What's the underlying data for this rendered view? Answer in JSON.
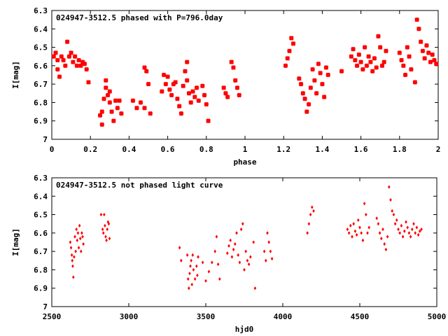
{
  "chart_data": [
    {
      "type": "scatter",
      "title": "024947-3512.5 phased with P=796.0day",
      "xlabel": "phase",
      "ylabel": "I[mag]",
      "xlim": [
        0,
        2
      ],
      "ylim": [
        7,
        6.3
      ],
      "y_inverted": true,
      "xticks": [
        "0",
        "0.2",
        "0.4",
        "0.6",
        "0.8",
        "1",
        "1.2",
        "1.4",
        "1.6",
        "1.8",
        "2"
      ],
      "yticks": [
        "6.3",
        "6.4",
        "6.5",
        "6.6",
        "6.7",
        "6.8",
        "6.9",
        "7"
      ],
      "marker_color": "#ff0000",
      "marker": "cross",
      "series": [
        {
          "points": [
            [
              0.01,
              6.55
            ],
            [
              0.02,
              6.53
            ],
            [
              0.03,
              6.57
            ],
            [
              0.03,
              6.62
            ],
            [
              0.04,
              6.66
            ],
            [
              0.05,
              6.55
            ],
            [
              0.06,
              6.57
            ],
            [
              0.07,
              6.6
            ],
            [
              0.08,
              6.47
            ],
            [
              0.09,
              6.55
            ],
            [
              0.1,
              6.53
            ],
            [
              0.11,
              6.58
            ],
            [
              0.12,
              6.55
            ],
            [
              0.13,
              6.6
            ],
            [
              0.14,
              6.57
            ],
            [
              0.15,
              6.6
            ],
            [
              0.16,
              6.58
            ],
            [
              0.17,
              6.59
            ],
            [
              0.18,
              6.62
            ],
            [
              0.19,
              6.69
            ],
            [
              0.25,
              6.87
            ],
            [
              0.26,
              6.92
            ],
            [
              0.26,
              6.85
            ],
            [
              0.27,
              6.78
            ],
            [
              0.28,
              6.72
            ],
            [
              0.28,
              6.68
            ],
            [
              0.29,
              6.76
            ],
            [
              0.3,
              6.8
            ],
            [
              0.3,
              6.74
            ],
            [
              0.31,
              6.85
            ],
            [
              0.32,
              6.9
            ],
            [
              0.33,
              6.79
            ],
            [
              0.34,
              6.83
            ],
            [
              0.35,
              6.79
            ],
            [
              0.36,
              6.86
            ],
            [
              0.42,
              6.79
            ],
            [
              0.44,
              6.83
            ],
            [
              0.46,
              6.8
            ],
            [
              0.48,
              6.83
            ],
            [
              0.48,
              6.61
            ],
            [
              0.49,
              6.63
            ],
            [
              0.5,
              6.7
            ],
            [
              0.51,
              6.86
            ],
            [
              0.57,
              6.74
            ],
            [
              0.58,
              6.65
            ],
            [
              0.59,
              6.7
            ],
            [
              0.6,
              6.66
            ],
            [
              0.61,
              6.73
            ],
            [
              0.62,
              6.76
            ],
            [
              0.63,
              6.7
            ],
            [
              0.64,
              6.69
            ],
            [
              0.65,
              6.78
            ],
            [
              0.66,
              6.82
            ],
            [
              0.67,
              6.86
            ],
            [
              0.68,
              6.71
            ],
            [
              0.69,
              6.63
            ],
            [
              0.7,
              6.58
            ],
            [
              0.7,
              6.68
            ],
            [
              0.71,
              6.75
            ],
            [
              0.72,
              6.8
            ],
            [
              0.73,
              6.74
            ],
            [
              0.74,
              6.77
            ],
            [
              0.75,
              6.72
            ],
            [
              0.76,
              6.79
            ],
            [
              0.78,
              6.71
            ],
            [
              0.79,
              6.76
            ],
            [
              0.8,
              6.81
            ],
            [
              0.81,
              6.9
            ],
            [
              0.89,
              6.72
            ],
            [
              0.9,
              6.75
            ],
            [
              0.91,
              6.77
            ],
            [
              0.93,
              6.58
            ],
            [
              0.94,
              6.61
            ],
            [
              0.95,
              6.68
            ],
            [
              0.96,
              6.72
            ],
            [
              0.97,
              6.76
            ],
            [
              1.21,
              6.6
            ],
            [
              1.22,
              6.56
            ],
            [
              1.23,
              6.52
            ],
            [
              1.24,
              6.45
            ],
            [
              1.25,
              6.48
            ],
            [
              1.28,
              6.67
            ],
            [
              1.29,
              6.7
            ],
            [
              1.3,
              6.75
            ],
            [
              1.31,
              6.78
            ],
            [
              1.32,
              6.85
            ],
            [
              1.33,
              6.81
            ],
            [
              1.34,
              6.72
            ],
            [
              1.35,
              6.62
            ],
            [
              1.36,
              6.68
            ],
            [
              1.37,
              6.75
            ],
            [
              1.38,
              6.59
            ],
            [
              1.39,
              6.64
            ],
            [
              1.4,
              6.7
            ],
            [
              1.41,
              6.77
            ],
            [
              1.42,
              6.61
            ],
            [
              1.43,
              6.65
            ],
            [
              1.5,
              6.63
            ],
            [
              1.55,
              6.55
            ],
            [
              1.56,
              6.51
            ],
            [
              1.57,
              6.57
            ],
            [
              1.58,
              6.6
            ],
            [
              1.59,
              6.54
            ],
            [
              1.6,
              6.58
            ],
            [
              1.61,
              6.62
            ],
            [
              1.62,
              6.5
            ],
            [
              1.63,
              6.6
            ],
            [
              1.64,
              6.55
            ],
            [
              1.65,
              6.58
            ],
            [
              1.66,
              6.63
            ],
            [
              1.67,
              6.56
            ],
            [
              1.68,
              6.61
            ],
            [
              1.69,
              6.44
            ],
            [
              1.7,
              6.5
            ],
            [
              1.71,
              6.6
            ],
            [
              1.72,
              6.58
            ],
            [
              1.73,
              6.52
            ],
            [
              1.8,
              6.53
            ],
            [
              1.81,
              6.57
            ],
            [
              1.82,
              6.6
            ],
            [
              1.83,
              6.65
            ],
            [
              1.84,
              6.5
            ],
            [
              1.85,
              6.55
            ],
            [
              1.86,
              6.62
            ],
            [
              1.88,
              6.69
            ],
            [
              1.89,
              6.35
            ],
            [
              1.9,
              6.4
            ],
            [
              1.91,
              6.47
            ],
            [
              1.92,
              6.52
            ],
            [
              1.93,
              6.56
            ],
            [
              1.94,
              6.49
            ],
            [
              1.95,
              6.53
            ],
            [
              1.96,
              6.58
            ],
            [
              1.97,
              6.54
            ],
            [
              1.98,
              6.57
            ],
            [
              1.99,
              6.59
            ]
          ]
        }
      ]
    },
    {
      "type": "scatter",
      "title": "024947-3512.5 not phased light curve",
      "xlabel": "hjd0",
      "ylabel": "I[mag]",
      "xlim": [
        2500,
        5000
      ],
      "ylim": [
        7,
        6.3
      ],
      "y_inverted": true,
      "xticks": [
        "2500",
        "3000",
        "3500",
        "4000",
        "4500",
        "5000"
      ],
      "yticks": [
        "6.3",
        "6.4",
        "6.5",
        "6.6",
        "6.7",
        "6.8",
        "6.9",
        "7"
      ],
      "marker_color": "#ff0000",
      "marker": "diamond",
      "series": [
        {
          "points": [
            [
              2620,
              6.65
            ],
            [
              2625,
              6.68
            ],
            [
              2630,
              6.72
            ],
            [
              2633,
              6.75
            ],
            [
              2636,
              6.78
            ],
            [
              2640,
              6.84
            ],
            [
              2645,
              6.73
            ],
            [
              2650,
              6.62
            ],
            [
              2655,
              6.7
            ],
            [
              2660,
              6.58
            ],
            [
              2665,
              6.64
            ],
            [
              2670,
              6.6
            ],
            [
              2675,
              6.68
            ],
            [
              2680,
              6.56
            ],
            [
              2685,
              6.63
            ],
            [
              2690,
              6.7
            ],
            [
              2695,
              6.6
            ],
            [
              2700,
              6.62
            ],
            [
              2705,
              6.66
            ],
            [
              2820,
              6.5
            ],
            [
              2830,
              6.58
            ],
            [
              2835,
              6.6
            ],
            [
              2840,
              6.5
            ],
            [
              2845,
              6.56
            ],
            [
              2850,
              6.62
            ],
            [
              2855,
              6.64
            ],
            [
              2860,
              6.58
            ],
            [
              2865,
              6.54
            ],
            [
              2870,
              6.55
            ],
            [
              2875,
              6.63
            ],
            [
              3330,
              6.68
            ],
            [
              3340,
              6.75
            ],
            [
              3380,
              6.72
            ],
            [
              3385,
              6.85
            ],
            [
              3390,
              6.9
            ],
            [
              3395,
              6.82
            ],
            [
              3400,
              6.78
            ],
            [
              3405,
              6.75
            ],
            [
              3410,
              6.88
            ],
            [
              3415,
              6.72
            ],
            [
              3420,
              6.8
            ],
            [
              3430,
              6.85
            ],
            [
              3440,
              6.78
            ],
            [
              3445,
              6.83
            ],
            [
              3450,
              6.73
            ],
            [
              3480,
              6.76
            ],
            [
              3500,
              6.86
            ],
            [
              3520,
              6.81
            ],
            [
              3540,
              6.76
            ],
            [
              3560,
              6.7
            ],
            [
              3570,
              6.62
            ],
            [
              3580,
              6.77
            ],
            [
              3590,
              6.85
            ],
            [
              3640,
              6.71
            ],
            [
              3650,
              6.67
            ],
            [
              3660,
              6.64
            ],
            [
              3670,
              6.73
            ],
            [
              3680,
              6.69
            ],
            [
              3690,
              6.66
            ],
            [
              3700,
              6.6
            ],
            [
              3710,
              6.72
            ],
            [
              3720,
              6.76
            ],
            [
              3730,
              6.58
            ],
            [
              3740,
              6.55
            ],
            [
              3750,
              6.8
            ],
            [
              3760,
              6.7
            ],
            [
              3770,
              6.75
            ],
            [
              3780,
              6.77
            ],
            [
              3790,
              6.73
            ],
            [
              3810,
              6.65
            ],
            [
              3820,
              6.9
            ],
            [
              3880,
              6.7
            ],
            [
              3890,
              6.75
            ],
            [
              3900,
              6.6
            ],
            [
              3910,
              6.65
            ],
            [
              3920,
              6.7
            ],
            [
              3930,
              6.74
            ],
            [
              4160,
              6.6
            ],
            [
              4170,
              6.55
            ],
            [
              4180,
              6.5
            ],
            [
              4190,
              6.46
            ],
            [
              4200,
              6.48
            ],
            [
              4420,
              6.58
            ],
            [
              4430,
              6.6
            ],
            [
              4440,
              6.56
            ],
            [
              4450,
              6.62
            ],
            [
              4460,
              6.55
            ],
            [
              4470,
              6.59
            ],
            [
              4480,
              6.61
            ],
            [
              4490,
              6.53
            ],
            [
              4500,
              6.57
            ],
            [
              4510,
              6.6
            ],
            [
              4520,
              6.64
            ],
            [
              4530,
              6.44
            ],
            [
              4540,
              6.5
            ],
            [
              4550,
              6.6
            ],
            [
              4560,
              6.57
            ],
            [
              4610,
              6.52
            ],
            [
              4620,
              6.55
            ],
            [
              4630,
              6.6
            ],
            [
              4640,
              6.63
            ],
            [
              4650,
              6.58
            ],
            [
              4660,
              6.66
            ],
            [
              4670,
              6.69
            ],
            [
              4680,
              6.62
            ],
            [
              4690,
              6.35
            ],
            [
              4700,
              6.42
            ],
            [
              4710,
              6.48
            ],
            [
              4720,
              6.5
            ],
            [
              4730,
              6.55
            ],
            [
              4740,
              6.53
            ],
            [
              4750,
              6.58
            ],
            [
              4760,
              6.6
            ],
            [
              4770,
              6.56
            ],
            [
              4780,
              6.62
            ],
            [
              4790,
              6.59
            ],
            [
              4800,
              6.54
            ],
            [
              4810,
              6.57
            ],
            [
              4820,
              6.6
            ],
            [
              4830,
              6.62
            ],
            [
              4840,
              6.58
            ],
            [
              4850,
              6.55
            ],
            [
              4860,
              6.6
            ],
            [
              4870,
              6.57
            ],
            [
              4880,
              6.61
            ],
            [
              4890,
              6.59
            ],
            [
              4900,
              6.58
            ]
          ]
        }
      ]
    }
  ]
}
